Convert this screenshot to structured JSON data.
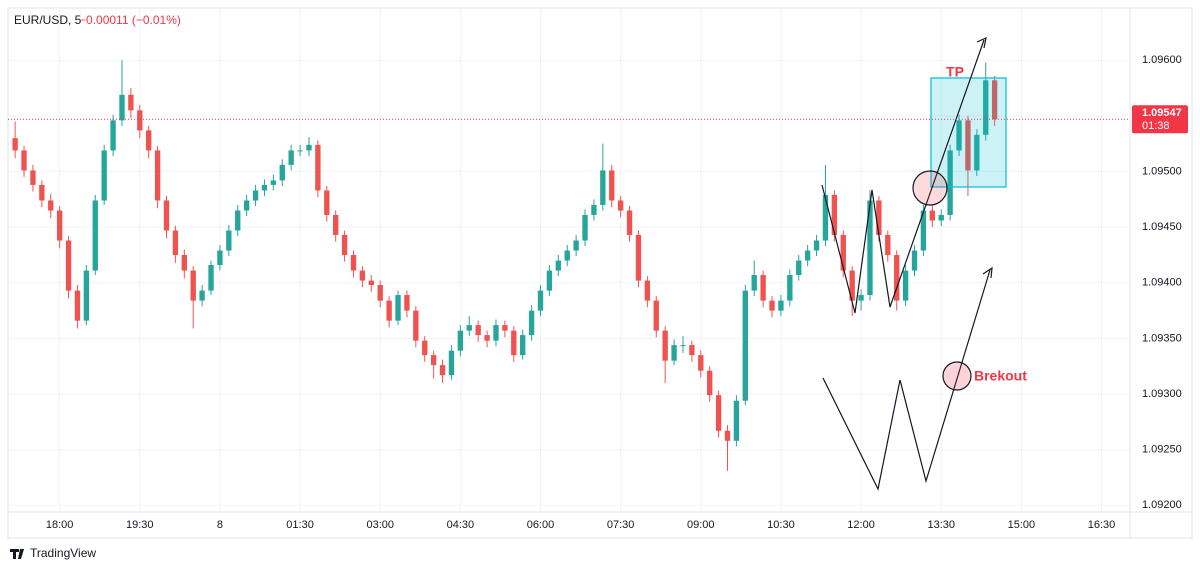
{
  "chart_data": {
    "type": "candlestick",
    "title": "EUR/USD, 5",
    "change": "−0.00011 (−0.01%)",
    "last_price": 1.09547,
    "countdown": "01:38",
    "annotations": [
      "TP",
      "Brekout"
    ],
    "footer": "TradingView",
    "up_color": "#26a69a",
    "down_color": "#ef5350",
    "grid": true,
    "ylim": [
      1.09194,
      1.09647
    ],
    "yticks": [
      {
        "value": 1.092,
        "label": "1.09200"
      },
      {
        "value": 1.0925,
        "label": "1.09250"
      },
      {
        "value": 1.093,
        "label": "1.09300"
      },
      {
        "value": 1.0935,
        "label": "1.09350"
      },
      {
        "value": 1.094,
        "label": "1.09400"
      },
      {
        "value": 1.0945,
        "label": "1.09450"
      },
      {
        "value": 1.095,
        "label": "1.09500"
      },
      {
        "value": 1.0955,
        "label": "1.09550"
      },
      {
        "value": 1.096,
        "label": "1.09600"
      }
    ],
    "xlim": [
      -0.8,
      125.2
    ],
    "xticks": [
      {
        "value": 5,
        "label": "18:00"
      },
      {
        "value": 14,
        "label": "19:30"
      },
      {
        "value": 23,
        "label": "8"
      },
      {
        "value": 32,
        "label": "01:30"
      },
      {
        "value": 41,
        "label": "03:00"
      },
      {
        "value": 50,
        "label": "04:30"
      },
      {
        "value": 59,
        "label": "06:00"
      },
      {
        "value": 68,
        "label": "07:30"
      },
      {
        "value": 77,
        "label": "09:00"
      },
      {
        "value": 86,
        "label": "10:30"
      },
      {
        "value": 95,
        "label": "12:00"
      },
      {
        "value": 104,
        "label": "13:30"
      },
      {
        "value": 113,
        "label": "15:00"
      },
      {
        "value": 122,
        "label": "16:30"
      }
    ],
    "ohlc": [
      [
        1.0953,
        1.09545,
        1.09512,
        1.09519
      ],
      [
        1.09519,
        1.09523,
        1.09495,
        1.09501
      ],
      [
        1.09501,
        1.09506,
        1.09482,
        1.09488
      ],
      [
        1.09488,
        1.09492,
        1.09468,
        1.09474
      ],
      [
        1.09474,
        1.0948,
        1.09458,
        1.09465
      ],
      [
        1.09465,
        1.09469,
        1.09431,
        1.09438
      ],
      [
        1.09438,
        1.09442,
        1.09386,
        1.09393
      ],
      [
        1.09393,
        1.09398,
        1.09359,
        1.09366
      ],
      [
        1.09366,
        1.09416,
        1.09362,
        1.09411
      ],
      [
        1.09411,
        1.09479,
        1.09407,
        1.09474
      ],
      [
        1.09474,
        1.09524,
        1.0947,
        1.09519
      ],
      [
        1.09519,
        1.09551,
        1.09514,
        1.09546
      ],
      [
        1.09546,
        1.096,
        1.09541,
        1.09569
      ],
      [
        1.09569,
        1.09575,
        1.09548,
        1.09555
      ],
      [
        1.09555,
        1.0956,
        1.0953,
        1.09537
      ],
      [
        1.09537,
        1.09541,
        1.09512,
        1.09519
      ],
      [
        1.09519,
        1.09523,
        1.09467,
        1.09474
      ],
      [
        1.09474,
        1.09478,
        1.0944,
        1.09447
      ],
      [
        1.09447,
        1.09451,
        1.09418,
        1.09425
      ],
      [
        1.09425,
        1.0943,
        1.09404,
        1.09411
      ],
      [
        1.09411,
        1.09415,
        1.09359,
        1.09384
      ],
      [
        1.09384,
        1.09398,
        1.09379,
        1.09393
      ],
      [
        1.09393,
        1.0942,
        1.09389,
        1.09416
      ],
      [
        1.09416,
        1.09434,
        1.09411,
        1.09429
      ],
      [
        1.09429,
        1.09452,
        1.09424,
        1.09447
      ],
      [
        1.09447,
        1.0947,
        1.09442,
        1.09465
      ],
      [
        1.09465,
        1.09479,
        1.0946,
        1.09474
      ],
      [
        1.09474,
        1.09488,
        1.09469,
        1.09483
      ],
      [
        1.09483,
        1.09493,
        1.09478,
        1.09488
      ],
      [
        1.09488,
        1.09497,
        1.09483,
        1.09492
      ],
      [
        1.09492,
        1.09511,
        1.09487,
        1.09506
      ],
      [
        1.09506,
        1.09524,
        1.09501,
        1.09519
      ],
      [
        1.09519,
        1.09524,
        1.09514,
        1.09519
      ],
      [
        1.09519,
        1.09531,
        1.09514,
        1.09524
      ],
      [
        1.09524,
        1.09528,
        1.09477,
        1.09483
      ],
      [
        1.09483,
        1.09487,
        1.09455,
        1.09461
      ],
      [
        1.09461,
        1.09465,
        1.09437,
        1.09443
      ],
      [
        1.09443,
        1.09447,
        1.09419,
        1.09425
      ],
      [
        1.09425,
        1.09429,
        1.09405,
        1.09411
      ],
      [
        1.09411,
        1.09415,
        1.09396,
        1.09402
      ],
      [
        1.09402,
        1.09407,
        1.09392,
        1.09398
      ],
      [
        1.09398,
        1.09402,
        1.09378,
        1.09384
      ],
      [
        1.09384,
        1.09388,
        1.0936,
        1.09366
      ],
      [
        1.09366,
        1.09393,
        1.09362,
        1.09389
      ],
      [
        1.09389,
        1.09393,
        1.09369,
        1.09375
      ],
      [
        1.09375,
        1.09379,
        1.09342,
        1.09348
      ],
      [
        1.09348,
        1.09352,
        1.09329,
        1.09335
      ],
      [
        1.09335,
        1.09339,
        1.09314,
        1.09326
      ],
      [
        1.09326,
        1.09331,
        1.0931,
        1.09317
      ],
      [
        1.09317,
        1.09344,
        1.09313,
        1.09339
      ],
      [
        1.09339,
        1.09362,
        1.09334,
        1.09357
      ],
      [
        1.09357,
        1.0937,
        1.09352,
        1.09362
      ],
      [
        1.09362,
        1.09366,
        1.09347,
        1.09353
      ],
      [
        1.09353,
        1.09357,
        1.09342,
        1.09348
      ],
      [
        1.09348,
        1.09367,
        1.09343,
        1.09362
      ],
      [
        1.09362,
        1.09366,
        1.09351,
        1.09357
      ],
      [
        1.09357,
        1.09361,
        1.09329,
        1.09335
      ],
      [
        1.09335,
        1.09358,
        1.09331,
        1.09353
      ],
      [
        1.09353,
        1.0938,
        1.09348,
        1.09375
      ],
      [
        1.09375,
        1.09398,
        1.0937,
        1.09393
      ],
      [
        1.09393,
        1.09416,
        1.09388,
        1.09411
      ],
      [
        1.09411,
        1.09425,
        1.09406,
        1.0942
      ],
      [
        1.0942,
        1.09434,
        1.09415,
        1.09429
      ],
      [
        1.09429,
        1.09443,
        1.09424,
        1.09438
      ],
      [
        1.09438,
        1.09466,
        1.09433,
        1.09461
      ],
      [
        1.09461,
        1.09475,
        1.09456,
        1.0947
      ],
      [
        1.0947,
        1.09525,
        1.09465,
        1.09501
      ],
      [
        1.09501,
        1.09506,
        1.09468,
        1.09474
      ],
      [
        1.09474,
        1.09478,
        1.09459,
        1.09465
      ],
      [
        1.09465,
        1.09469,
        1.09437,
        1.09443
      ],
      [
        1.09443,
        1.09447,
        1.09396,
        1.09402
      ],
      [
        1.09402,
        1.09406,
        1.09378,
        1.09384
      ],
      [
        1.09384,
        1.09388,
        1.09351,
        1.09357
      ],
      [
        1.09357,
        1.09361,
        1.0931,
        1.0933
      ],
      [
        1.0933,
        1.09349,
        1.09326,
        1.09344
      ],
      [
        1.09344,
        1.09352,
        1.09337,
        1.09344
      ],
      [
        1.09344,
        1.09348,
        1.09329,
        1.09335
      ],
      [
        1.09335,
        1.09339,
        1.09315,
        1.09321
      ],
      [
        1.09321,
        1.09325,
        1.09293,
        1.09299
      ],
      [
        1.09299,
        1.09303,
        1.09261,
        1.09267
      ],
      [
        1.09267,
        1.09272,
        1.09231,
        1.09258
      ],
      [
        1.09258,
        1.09299,
        1.09253,
        1.09294
      ],
      [
        1.09294,
        1.09398,
        1.0929,
        1.09393
      ],
      [
        1.09393,
        1.0942,
        1.09388,
        1.09407
      ],
      [
        1.09407,
        1.09411,
        1.09378,
        1.09384
      ],
      [
        1.09384,
        1.09388,
        1.09369,
        1.09375
      ],
      [
        1.09375,
        1.09389,
        1.0937,
        1.09384
      ],
      [
        1.09384,
        1.09412,
        1.09379,
        1.09407
      ],
      [
        1.09407,
        1.09425,
        1.09402,
        1.0942
      ],
      [
        1.0942,
        1.09434,
        1.09415,
        1.09429
      ],
      [
        1.09429,
        1.09443,
        1.09424,
        1.09438
      ],
      [
        1.09438,
        1.09506,
        1.09433,
        1.09479
      ],
      [
        1.09479,
        1.09483,
        1.09437,
        1.09443
      ],
      [
        1.09443,
        1.09447,
        1.09405,
        1.09411
      ],
      [
        1.09411,
        1.09415,
        1.0937,
        1.09384
      ],
      [
        1.09384,
        1.09394,
        1.09375,
        1.09389
      ],
      [
        1.09389,
        1.09483,
        1.09384,
        1.09474
      ],
      [
        1.09474,
        1.09478,
        1.09437,
        1.09443
      ],
      [
        1.09443,
        1.09447,
        1.09419,
        1.09425
      ],
      [
        1.09425,
        1.09429,
        1.09375,
        1.09384
      ],
      [
        1.09384,
        1.09416,
        1.09379,
        1.09411
      ],
      [
        1.09411,
        1.09434,
        1.09406,
        1.09429
      ],
      [
        1.09429,
        1.0947,
        1.09424,
        1.09465
      ],
      [
        1.09465,
        1.0947,
        1.0945,
        1.09456
      ],
      [
        1.09456,
        1.09466,
        1.09451,
        1.09461
      ],
      [
        1.09461,
        1.09524,
        1.09456,
        1.09519
      ],
      [
        1.09519,
        1.09551,
        1.09514,
        1.09546
      ],
      [
        1.09546,
        1.0955,
        1.09478,
        1.09501
      ],
      [
        1.09501,
        1.09538,
        1.09496,
        1.09533
      ],
      [
        1.09533,
        1.09598,
        1.09528,
        1.09582
      ],
      [
        1.09582,
        1.09586,
        1.09541,
        1.09547
      ]
    ]
  }
}
